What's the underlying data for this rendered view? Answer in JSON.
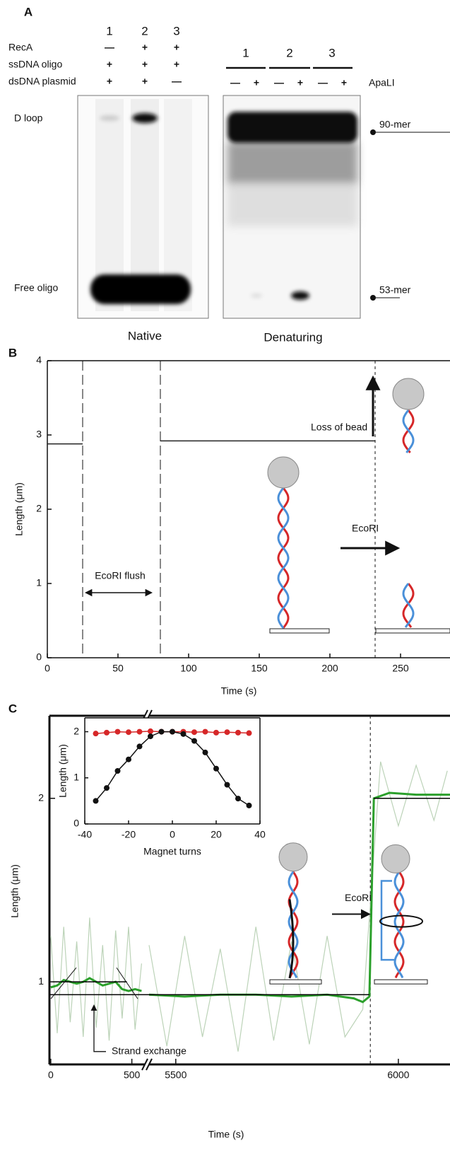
{
  "panel_a": {
    "label": "A",
    "lanes": [
      "1",
      "2",
      "3"
    ],
    "conditions": [
      {
        "label": "RecA",
        "marks": [
          "—",
          "+",
          "+"
        ]
      },
      {
        "label": "ssDNA oligo",
        "marks": [
          "+",
          "+",
          "+"
        ]
      },
      {
        "label": "dsDNA plasmid",
        "marks": [
          "+",
          "+",
          "—"
        ]
      }
    ],
    "native": {
      "caption": "Native",
      "bands": [
        "D loop",
        "Free oligo"
      ]
    },
    "denaturing": {
      "caption": "Denaturing",
      "groups": [
        "1",
        "2",
        "3"
      ],
      "enzyme": "ApaLI",
      "enzyme_marks": [
        "—",
        "+",
        "—",
        "+",
        "—",
        "+"
      ],
      "sizes": [
        "90-mer",
        "53-mer"
      ]
    }
  },
  "chart_data": [
    {
      "type": "line",
      "panel": "B",
      "xlabel": "Time (s)",
      "ylabel": "Length (μm)",
      "xlim": [
        0,
        285
      ],
      "ylim": [
        0,
        4
      ],
      "xticks": [
        0,
        50,
        100,
        150,
        200,
        250
      ],
      "yticks": [
        0,
        1,
        2,
        3,
        4
      ],
      "series": [
        {
          "color": "#222222",
          "x": [
            0,
            25,
            50,
            80,
            232
          ],
          "values": [
            2.88,
            2.88,
            null,
            2.92,
            2.92
          ]
        }
      ],
      "events_x": [
        25,
        80,
        232
      ],
      "annotations": [
        "Loss of bead",
        "EcoRI",
        "EcoRI flush"
      ]
    },
    {
      "type": "line",
      "panel": "C",
      "xlabel": "Time (s)",
      "ylabel": "Length (μm)",
      "xlim": [
        -8,
        6116
      ],
      "xbreak": [
        580,
        5440
      ],
      "ylim": [
        0.55,
        2.45
      ],
      "xticks": [
        0,
        500,
        5500,
        6000
      ],
      "yticks": [
        1,
        2
      ],
      "series": [
        {
          "color": "#bcd3b8",
          "x": [
            0,
            40,
            80,
            120,
            160,
            200,
            240,
            280,
            320,
            360,
            400,
            440,
            480,
            520,
            560
          ],
          "values": [
            1.25,
            0.72,
            1.3,
            0.78,
            1.22,
            0.7,
            1.35,
            0.75,
            1.2,
            0.68,
            1.28,
            0.8,
            1.3,
            0.74,
            1.1
          ]
        },
        {
          "color": "#bcd3b8",
          "x": [
            5440,
            5480,
            5520,
            5560,
            5600,
            5640,
            5680,
            5720,
            5760,
            5800,
            5840,
            5880,
            5920,
            5960,
            6000,
            6040,
            6080,
            6110
          ],
          "values": [
            1.2,
            0.65,
            1.25,
            0.7,
            1.18,
            0.62,
            1.3,
            0.68,
            1.22,
            0.66,
            1.25,
            0.7,
            0.85,
            2.2,
            1.85,
            2.18,
            1.88,
            2.15
          ]
        },
        {
          "color": "#2ca02c",
          "x": [
            0,
            40,
            80,
            120,
            160,
            200,
            240,
            280,
            320,
            360,
            400,
            440,
            480,
            520,
            560
          ],
          "values": [
            0.97,
            0.98,
            1.01,
            1.0,
            0.99,
            1.0,
            1.02,
            1.0,
            0.98,
            0.99,
            1.0,
            0.96,
            0.95,
            0.96,
            0.95
          ]
        },
        {
          "color": "#2ca02c",
          "x": [
            5440,
            5520,
            5600,
            5680,
            5760,
            5840,
            5900,
            5920,
            5935,
            5945,
            5980,
            6040,
            6116
          ],
          "values": [
            0.93,
            0.92,
            0.93,
            0.93,
            0.92,
            0.93,
            0.91,
            0.89,
            0.92,
            2.0,
            2.03,
            2.02,
            2.02
          ]
        },
        {
          "color": "#000000",
          "x": [
            -8,
            580,
            5440,
            5935
          ],
          "values": [
            0.93,
            0.93,
            0.93,
            0.93
          ]
        },
        {
          "color": "#000000",
          "x": [
            5945,
            6116
          ],
          "values": [
            2.0,
            2.0
          ]
        },
        {
          "color": "#000000",
          "x": [
            10,
            470
          ],
          "values": [
            1.0,
            1.0
          ]
        }
      ],
      "events_x": [
        5937
      ],
      "annotations": [
        "EcoRI",
        "Strand exchange"
      ]
    },
    {
      "type": "line",
      "markers": true,
      "xlabel": "Magnet turns",
      "ylabel": "Length (μm)",
      "xlim": [
        -40,
        40
      ],
      "ylim": [
        0,
        2.3
      ],
      "xticks": [
        -40,
        -20,
        0,
        20,
        40
      ],
      "yticks": [
        0,
        1,
        2
      ],
      "series": [
        {
          "color": "#d62728",
          "x": [
            -35,
            -30,
            -25,
            -20,
            -15,
            -10,
            -5,
            0,
            5,
            10,
            15,
            20,
            25,
            30,
            35
          ],
          "values": [
            1.96,
            1.98,
            2.0,
            1.99,
            2.0,
            2.01,
            2.0,
            2.0,
            2.0,
            1.99,
            2.0,
            1.98,
            1.99,
            1.98,
            1.97
          ]
        },
        {
          "color": "#111111",
          "x": [
            -35,
            -30,
            -25,
            -20,
            -15,
            -10,
            -5,
            0,
            5,
            10,
            15,
            20,
            25,
            30,
            35
          ],
          "values": [
            0.5,
            0.78,
            1.15,
            1.4,
            1.68,
            1.9,
            2.0,
            2.0,
            1.95,
            1.8,
            1.55,
            1.2,
            0.85,
            0.55,
            0.4
          ]
        }
      ]
    }
  ]
}
